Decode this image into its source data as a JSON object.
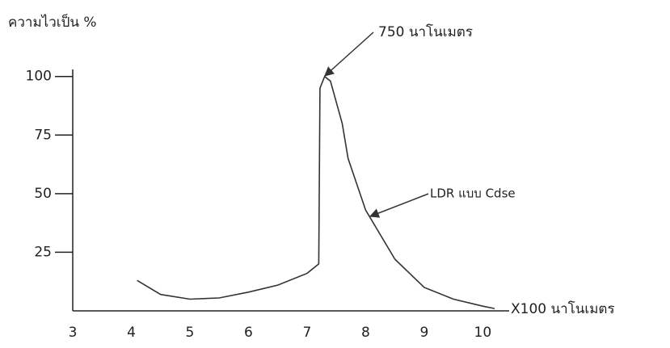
{
  "chart_data": {
    "type": "line",
    "y_label": "ความไวเป็น %",
    "x_label": "X100 นาโนเมตร",
    "x": [
      4.1,
      4.5,
      5,
      5.5,
      6,
      6.5,
      7,
      7.2,
      7.22,
      7.3,
      7.4,
      7.6,
      7.7,
      8,
      8.5,
      9,
      9.5,
      10,
      10.2
    ],
    "series": [
      {
        "color": "#333333",
        "values": [
          13,
          7,
          5,
          5.5,
          8,
          11,
          16,
          20,
          95,
          100,
          98,
          80,
          65,
          43,
          22,
          10,
          5,
          2,
          1
        ]
      }
    ],
    "xlim": [
      3,
      10.45
    ],
    "ylim": [
      0,
      103
    ],
    "xticks": [
      3,
      4,
      5,
      6,
      7,
      8,
      9,
      10
    ],
    "yticks": [
      25,
      50,
      75,
      100
    ],
    "grid": false,
    "annotations": [
      {
        "text": "750 นาโนเมตร"
      },
      {
        "text": "LDR แบบ Cdse"
      }
    ]
  }
}
